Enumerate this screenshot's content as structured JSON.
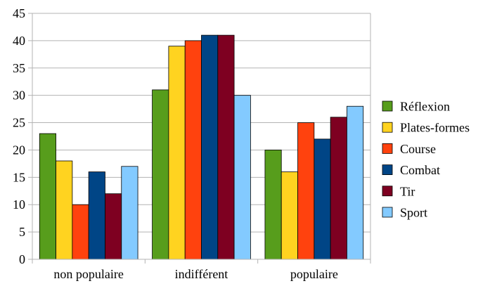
{
  "chart_data": {
    "type": "bar",
    "categories": [
      "non populaire",
      "indifférent",
      "populaire"
    ],
    "series": [
      {
        "name": "Réflexion",
        "color": "#579d1c",
        "values": [
          23,
          31,
          20
        ]
      },
      {
        "name": "Plates-formes",
        "color": "#ffd320",
        "values": [
          18,
          39,
          16
        ]
      },
      {
        "name": "Course",
        "color": "#ff420e",
        "values": [
          10,
          40,
          25
        ]
      },
      {
        "name": "Combat",
        "color": "#004586",
        "values": [
          16,
          41,
          22
        ]
      },
      {
        "name": "Tir",
        "color": "#7e0021",
        "values": [
          12,
          41,
          26
        ]
      },
      {
        "name": "Sport",
        "color": "#83caff",
        "values": [
          17,
          30,
          28
        ]
      }
    ],
    "ylim": [
      0,
      45
    ],
    "yticks": [
      0,
      5,
      10,
      15,
      20,
      25,
      30,
      35,
      40,
      45
    ],
    "grid": true,
    "legend_position": "right"
  }
}
